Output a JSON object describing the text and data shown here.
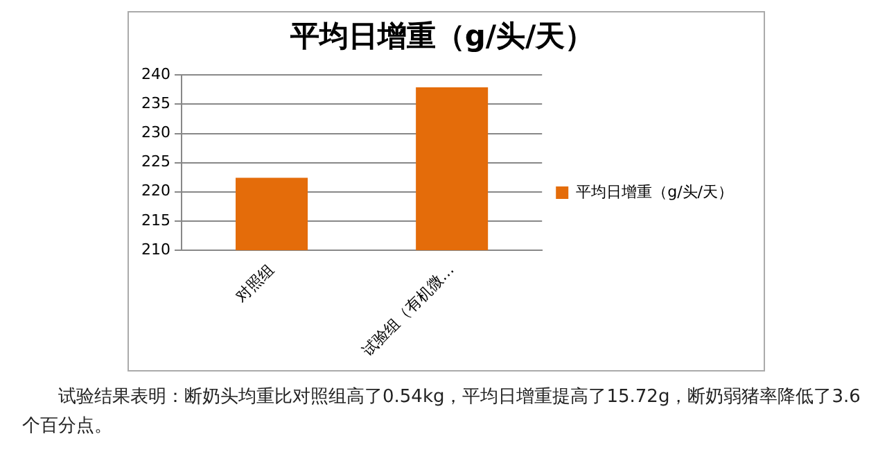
{
  "chart_data": {
    "type": "bar",
    "title": "平均日增重（g/头/天）",
    "categories": [
      "对照组",
      "试验组（有机微…"
    ],
    "series": [
      {
        "name": "平均日增重（g/头/天）",
        "color": "#e46c0a",
        "values": [
          222.4,
          237.9
        ]
      }
    ],
    "ylim": [
      210,
      240
    ],
    "yticks": [
      210,
      215,
      220,
      225,
      230,
      235,
      240
    ],
    "grid": "y",
    "legend": "right",
    "annotations": [
      "试验结果表明：断奶头均重比对照组高了0.54kg，平均日增重提高了15.72g，断奶弱猪率降低了3.6个百分点。"
    ]
  }
}
